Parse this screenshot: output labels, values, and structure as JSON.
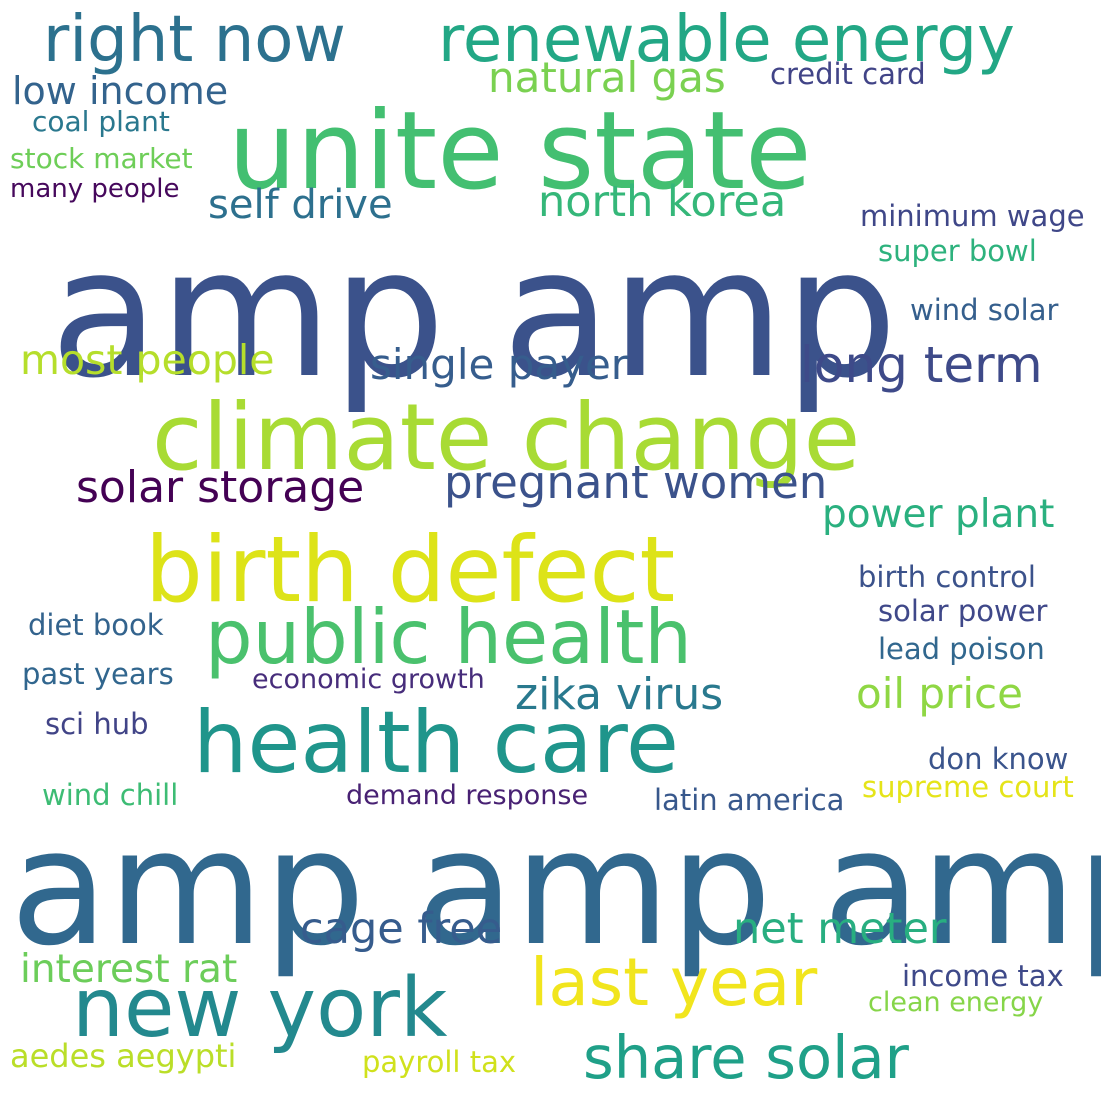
{
  "words": [
    {
      "text": "amp amp amp",
      "color": "#31688e"
    },
    {
      "text": "amp amp",
      "color": "#3b528b"
    },
    {
      "text": "unite state",
      "color": "#43bf71"
    },
    {
      "text": "climate change",
      "color": "#a8db34"
    },
    {
      "text": "birth defect",
      "color": "#dde318"
    },
    {
      "text": "health care",
      "color": "#1f958b"
    },
    {
      "text": "public health",
      "color": "#4ac16d"
    },
    {
      "text": "right now",
      "color": "#2c718e"
    },
    {
      "text": "renewable energy",
      "color": "#22a785"
    },
    {
      "text": "new york",
      "color": "#23898e"
    },
    {
      "text": "last year",
      "color": "#f1e51d"
    },
    {
      "text": "share solar",
      "color": "#1fa088"
    },
    {
      "text": "long term",
      "color": "#3e4a89"
    },
    {
      "text": "natural gas",
      "color": "#7ad151"
    },
    {
      "text": "low income",
      "color": "#33638d"
    },
    {
      "text": "credit card",
      "color": "#414487"
    },
    {
      "text": "coal plant",
      "color": "#2a788e"
    },
    {
      "text": "stock market",
      "color": "#6ece58"
    },
    {
      "text": "many people",
      "color": "#46085c"
    },
    {
      "text": "self drive",
      "color": "#2d708e"
    },
    {
      "text": "north korea",
      "color": "#35b779"
    },
    {
      "text": "minimum wage",
      "color": "#3f4788"
    },
    {
      "text": "super bowl",
      "color": "#2db27d"
    },
    {
      "text": "wind solar",
      "color": "#355f8d"
    },
    {
      "text": "most people",
      "color": "#b5de2b"
    },
    {
      "text": "single payer",
      "color": "#365d8d"
    },
    {
      "text": "solar storage",
      "color": "#440154"
    },
    {
      "text": "pregnant women",
      "color": "#3b528b"
    },
    {
      "text": "power plant",
      "color": "#2ab07f"
    },
    {
      "text": "birth control",
      "color": "#3b528b"
    },
    {
      "text": "solar power",
      "color": "#3f4889"
    },
    {
      "text": "diet book",
      "color": "#33638d"
    },
    {
      "text": "lead poison",
      "color": "#31678e"
    },
    {
      "text": "zika virus",
      "color": "#29798e"
    },
    {
      "text": "oil price",
      "color": "#8fd744"
    },
    {
      "text": "past years",
      "color": "#31668e"
    },
    {
      "text": "economic growth",
      "color": "#472d7b"
    },
    {
      "text": "sci hub",
      "color": "#414487"
    },
    {
      "text": "don know",
      "color": "#3a548c"
    },
    {
      "text": "wind chill",
      "color": "#3dbc74"
    },
    {
      "text": "demand response",
      "color": "#482173"
    },
    {
      "text": "latin america",
      "color": "#38588c"
    },
    {
      "text": "supreme court",
      "color": "#e5e419"
    },
    {
      "text": "cage free",
      "color": "#365c8d"
    },
    {
      "text": "net meter",
      "color": "#28ae80"
    },
    {
      "text": "interest rat",
      "color": "#6ccd5a"
    },
    {
      "text": "income tax",
      "color": "#3e4989"
    },
    {
      "text": "clean energy",
      "color": "#86d549"
    },
    {
      "text": "aedes aegypti",
      "color": "#bade28"
    },
    {
      "text": "payroll tax",
      "color": "#d0e11c"
    }
  ]
}
